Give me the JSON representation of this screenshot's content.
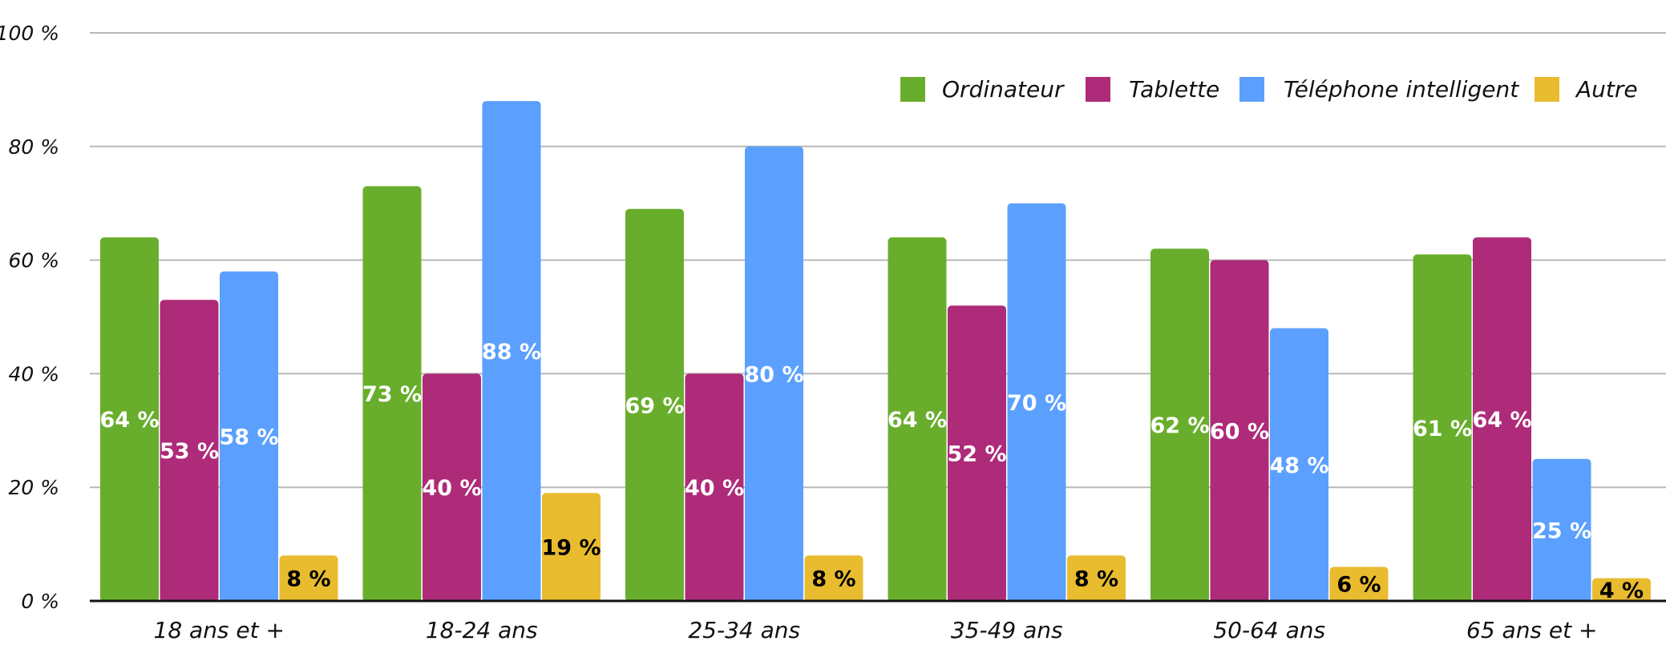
{
  "chart_data": {
    "type": "bar",
    "title": "",
    "xlabel": "",
    "ylabel": "",
    "ylim": [
      0,
      100
    ],
    "y_ticks": [
      {
        "value": 0,
        "label": "0 %"
      },
      {
        "value": 20,
        "label": "20 %"
      },
      {
        "value": 40,
        "label": "40 %"
      },
      {
        "value": 60,
        "label": "60 %"
      },
      {
        "value": 80,
        "label": "80 %"
      },
      {
        "value": 100,
        "label": "100 %"
      }
    ],
    "grid": true,
    "legend_position": "top-right",
    "categories": [
      "18 ans et +",
      "18-24 ans",
      "25-34 ans",
      "35-49 ans",
      "50-64 ans",
      "65 ans et +"
    ],
    "series": [
      {
        "name": "Ordinateur",
        "color": "#68ae2c",
        "label_color": "#ffffff",
        "values": [
          64,
          73,
          69,
          64,
          62,
          61
        ],
        "labels": [
          "64 %",
          "73 %",
          "69 %",
          "64 %",
          "62 %",
          "61 %"
        ]
      },
      {
        "name": "Tablette",
        "color": "#ad2b79",
        "label_color": "#ffffff",
        "values": [
          53,
          40,
          40,
          52,
          60,
          64
        ],
        "labels": [
          "53 %",
          "40 %",
          "40 %",
          "52 %",
          "60 %",
          "64 %"
        ]
      },
      {
        "name": "Téléphone intelligent",
        "color": "#5ba0fe",
        "label_color": "#ffffff",
        "values": [
          58,
          88,
          80,
          70,
          48,
          25
        ],
        "labels": [
          "58 %",
          "88 %",
          "80 %",
          "70 %",
          "48 %",
          "25 %"
        ]
      },
      {
        "name": "Autre",
        "color": "#e9bb2f",
        "label_color": "#000000",
        "values": [
          8,
          19,
          8,
          8,
          6,
          4
        ],
        "labels": [
          "8 %",
          "19 %",
          "8 %",
          "8 %",
          "6 %",
          "4 %"
        ]
      }
    ]
  }
}
